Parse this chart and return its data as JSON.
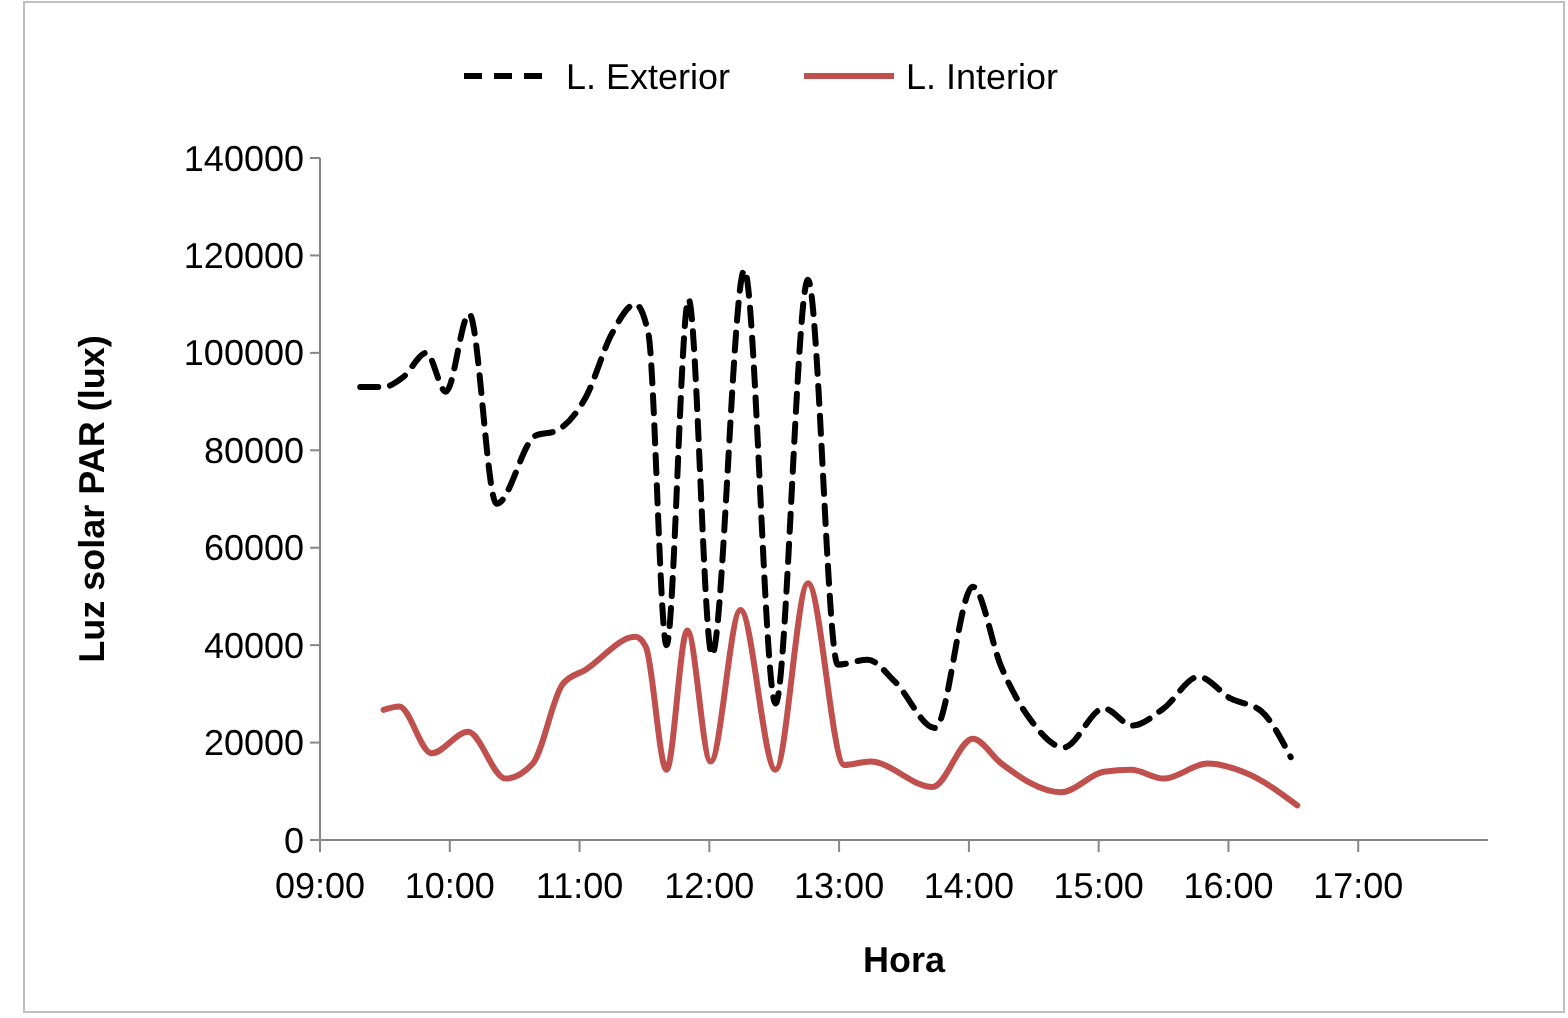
{
  "chart_data": {
    "type": "line",
    "xlabel": "Hora",
    "ylabel": "Luz solar PAR (lux)",
    "xlim": [
      9,
      18
    ],
    "xticks": [
      {
        "value": 9,
        "label": "09:00"
      },
      {
        "value": 10,
        "label": "10:00"
      },
      {
        "value": 11,
        "label": "11:00"
      },
      {
        "value": 12,
        "label": "12:00"
      },
      {
        "value": 13,
        "label": "13:00"
      },
      {
        "value": 14,
        "label": "14:00"
      },
      {
        "value": 15,
        "label": "15:00"
      },
      {
        "value": 16,
        "label": "16:00"
      },
      {
        "value": 17,
        "label": "17:00"
      }
    ],
    "ylim": [
      0,
      140000
    ],
    "yticks": [
      0,
      20000,
      40000,
      60000,
      80000,
      100000,
      120000,
      140000
    ],
    "grid": false,
    "legend": "top",
    "marker": "none",
    "series": [
      {
        "name": "L. Exterior",
        "color": "#000000",
        "line_style": "dashed",
        "x": [
          9.31,
          9.49,
          9.64,
          9.82,
          9.97,
          10.15,
          10.36,
          10.66,
          10.82,
          11.05,
          11.25,
          11.43,
          11.53,
          11.67,
          11.84,
          12.02,
          12.27,
          12.51,
          12.76,
          12.99,
          13.22,
          13.43,
          13.74,
          14.03,
          14.25,
          14.48,
          14.73,
          15.04,
          15.26,
          15.5,
          15.77,
          16.02,
          16.25,
          16.48
        ],
        "values": [
          93000,
          93000,
          95000,
          100000,
          92000,
          108000,
          69000,
          83000,
          84000,
          91000,
          104000,
          110000,
          104000,
          40000,
          111000,
          38000,
          117000,
          28000,
          115000,
          36000,
          37000,
          32500,
          23000,
          52000,
          35500,
          24500,
          19000,
          27000,
          23500,
          27000,
          33500,
          29000,
          26500,
          17000
        ]
      },
      {
        "name": "L. Interior",
        "color": "#c0504d",
        "line_style": "solid",
        "x": [
          9.49,
          9.61,
          9.86,
          10.14,
          10.43,
          10.64,
          10.87,
          11.05,
          11.43,
          11.51,
          11.67,
          11.83,
          12.01,
          12.24,
          12.51,
          12.76,
          13.04,
          13.24,
          13.72,
          14.03,
          14.25,
          14.71,
          15.04,
          15.25,
          15.5,
          15.84,
          16.14,
          16.53
        ],
        "values": [
          26700,
          27400,
          17800,
          22200,
          12600,
          15700,
          32000,
          35000,
          41700,
          39700,
          14400,
          43000,
          16100,
          47200,
          14400,
          52700,
          15400,
          16100,
          10900,
          20800,
          15700,
          9800,
          14000,
          14400,
          12600,
          15700,
          13700,
          7100
        ]
      }
    ]
  }
}
